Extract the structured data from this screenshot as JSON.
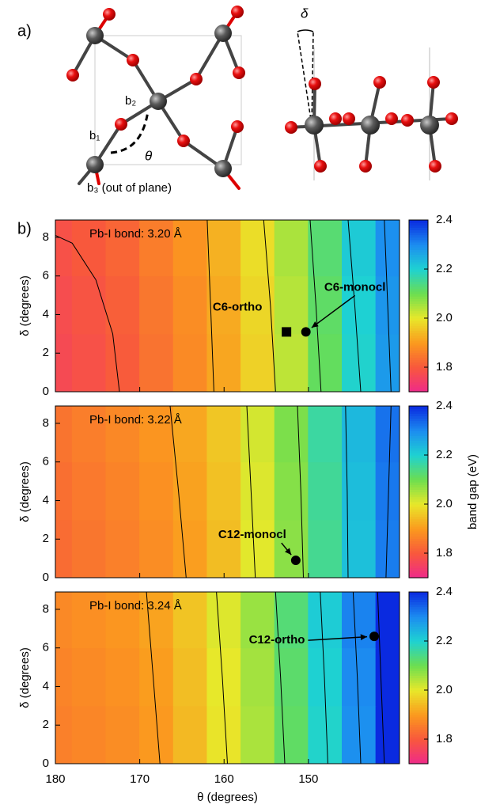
{
  "panel_a": {
    "label": "a)",
    "b1": "b₁",
    "b2": "b₂",
    "b3": "b₃ (out of plane)",
    "theta": "θ",
    "delta": "δ"
  },
  "panel_b_label": "b)",
  "chart_data": [
    {
      "type": "heatmap",
      "title": "Pb-I bond: 3.20 Å",
      "ylabel": "δ (degrees)",
      "x": [
        180,
        176,
        172,
        168,
        164,
        160,
        156,
        152,
        148,
        144,
        140
      ],
      "y": [
        1.5,
        4.5,
        7.5
      ],
      "z": [
        [
          1.77,
          1.785,
          1.804,
          1.841,
          1.875,
          1.915,
          1.971,
          2.035,
          2.111,
          2.196,
          2.28
        ],
        [
          1.776,
          1.791,
          1.81,
          1.847,
          1.881,
          1.921,
          1.977,
          2.041,
          2.117,
          2.202,
          2.286
        ],
        [
          1.785,
          1.8,
          1.819,
          1.856,
          1.89,
          1.93,
          1.986,
          2.05,
          2.126,
          2.211,
          2.295
        ]
      ],
      "xlim": [
        180,
        139.2
      ],
      "ylim": [
        0,
        8.9
      ],
      "xticks": [
        180,
        170,
        160,
        150
      ],
      "yticks": [
        0,
        2,
        4,
        6,
        8
      ],
      "colorlim": [
        1.7,
        2.4
      ],
      "colorticks": [
        1.8,
        {
          "value": 2,
          "label": "2.0"
        },
        2.2,
        2.4
      ],
      "colors": [
        "#ee2a8a",
        "#f8583c",
        "#fb9a1e",
        "#e8e82a",
        "#6cde50",
        "#1ed2d2",
        "#1c8cf0",
        "#0a2ae0"
      ],
      "contours": [
        {
          "x": [
            172.4,
            173.2,
            175.2,
            178.0,
            180
          ],
          "y": [
            0,
            3,
            5.8,
            7.7,
            8.1
          ]
        },
        {
          "x": [
            161.2,
            161.6,
            162.0
          ],
          "y": [
            0,
            4.45,
            8.9
          ]
        },
        {
          "x": [
            153.9,
            154.5,
            155.3
          ],
          "y": [
            0,
            4.45,
            8.9
          ]
        },
        {
          "x": [
            148.5,
            149.1,
            149.8
          ],
          "y": [
            0,
            4.45,
            8.9
          ]
        },
        {
          "x": [
            143.8,
            144.5,
            145.3
          ],
          "y": [
            0,
            4.45,
            8.9
          ]
        },
        {
          "x": [
            140.2,
            140.6,
            141.0
          ],
          "y": [
            0,
            4.45,
            8.9
          ]
        }
      ],
      "points": [
        {
          "name": "C6-ortho",
          "x": 152.6,
          "y": 3.1,
          "marker": "square"
        },
        {
          "name": "C6-monocl",
          "x": 150.3,
          "y": 3.1,
          "marker": "circle"
        }
      ]
    },
    {
      "type": "heatmap",
      "title": "Pb-I bond: 3.22 Å",
      "ylabel": "δ (degrees)",
      "colorbar_label": "band gap (eV)",
      "x": [
        180,
        176,
        172,
        168,
        164,
        160,
        156,
        152,
        148,
        144,
        140
      ],
      "y": [
        1.5,
        4.5,
        7.5
      ],
      "z": [
        [
          1.83,
          1.845,
          1.86,
          1.88,
          1.905,
          1.945,
          2.005,
          2.075,
          2.15,
          2.225,
          2.315
        ],
        [
          1.835,
          1.85,
          1.865,
          1.885,
          1.91,
          1.95,
          2.01,
          2.08,
          2.155,
          2.23,
          2.32
        ],
        [
          1.842,
          1.857,
          1.872,
          1.892,
          1.917,
          1.957,
          2.017,
          2.087,
          2.162,
          2.237,
          2.327
        ]
      ],
      "xlim": [
        180,
        139.2
      ],
      "ylim": [
        0,
        8.9
      ],
      "xticks": [
        180,
        170,
        160,
        150
      ],
      "yticks": [
        0,
        2,
        4,
        6,
        8
      ],
      "colorlim": [
        1.7,
        2.4
      ],
      "colorticks": [
        1.8,
        {
          "value": 2,
          "label": "2.0"
        },
        2.2,
        2.4
      ],
      "colors": [
        "#ee2a8a",
        "#f8583c",
        "#fb9a1e",
        "#e8e82a",
        "#6cde50",
        "#1ed2d2",
        "#1c8cf0",
        "#0a2ae0"
      ],
      "contours": [
        {
          "x": [
            164.5,
            165.4,
            166.4
          ],
          "y": [
            0,
            4.45,
            8.9
          ]
        },
        {
          "x": [
            156.3,
            156.8,
            157.3
          ],
          "y": [
            0,
            4.45,
            8.9
          ]
        },
        {
          "x": [
            150.6,
            150.9,
            151.3
          ],
          "y": [
            0,
            4.45,
            8.9
          ]
        },
        {
          "x": [
            145.3,
            145.4,
            145.6
          ],
          "y": [
            0,
            4.45,
            8.9
          ]
        },
        {
          "x": [
            140.8,
            140.5,
            140.2
          ],
          "y": [
            0,
            4.45,
            8.9
          ]
        }
      ],
      "points": [
        {
          "name": "C12-monocl",
          "x": 151.5,
          "y": 0.9,
          "marker": "circle"
        }
      ]
    },
    {
      "type": "heatmap",
      "title": "Pb-I bond: 3.24 Å",
      "ylabel": "δ (degrees)",
      "xlabel": "θ (degrees)",
      "x": [
        180,
        176,
        172,
        168,
        164,
        160,
        156,
        152,
        148,
        144,
        140
      ],
      "y": [
        1.5,
        4.5,
        7.5
      ],
      "z": [
        [
          1.86,
          1.87,
          1.88,
          1.898,
          1.94,
          1.995,
          2.05,
          2.115,
          2.195,
          2.295,
          2.43
        ],
        [
          1.866,
          1.876,
          1.886,
          1.904,
          1.946,
          2.001,
          2.056,
          2.121,
          2.201,
          2.301,
          2.436
        ],
        [
          1.874,
          1.884,
          1.894,
          1.912,
          1.954,
          2.009,
          2.064,
          2.129,
          2.209,
          2.309,
          2.444
        ]
      ],
      "xlim": [
        180,
        139.2
      ],
      "ylim": [
        0,
        8.9
      ],
      "xticks": [
        180,
        170,
        160,
        150
      ],
      "yticks": [
        0,
        2,
        4,
        6,
        8
      ],
      "colorlim": [
        1.7,
        2.4
      ],
      "colorticks": [
        1.8,
        {
          "value": 2,
          "label": "2.0"
        },
        2.2,
        2.4
      ],
      "colors": [
        "#ee2a8a",
        "#f8583c",
        "#fb9a1e",
        "#e8e82a",
        "#6cde50",
        "#1ed2d2",
        "#1c8cf0",
        "#0a2ae0"
      ],
      "contours": [
        {
          "x": [
            167.6,
            168.4,
            169.2
          ],
          "y": [
            0,
            4.45,
            8.9
          ]
        },
        {
          "x": [
            159.6,
            160.2,
            160.9
          ],
          "y": [
            0,
            4.45,
            8.9
          ]
        },
        {
          "x": [
            152.8,
            153.3,
            153.9
          ],
          "y": [
            0,
            4.45,
            8.9
          ]
        },
        {
          "x": [
            147.7,
            148.1,
            148.6
          ],
          "y": [
            0,
            4.45,
            8.9
          ]
        },
        {
          "x": [
            143.8,
            144.2,
            144.7
          ],
          "y": [
            0,
            4.45,
            8.9
          ]
        },
        {
          "x": [
            141.0,
            141.4,
            141.8
          ],
          "y": [
            0,
            4.45,
            8.9
          ]
        }
      ],
      "points": [
        {
          "name": "C12-ortho",
          "x": 142.2,
          "y": 6.6,
          "marker": "circle"
        }
      ]
    }
  ]
}
